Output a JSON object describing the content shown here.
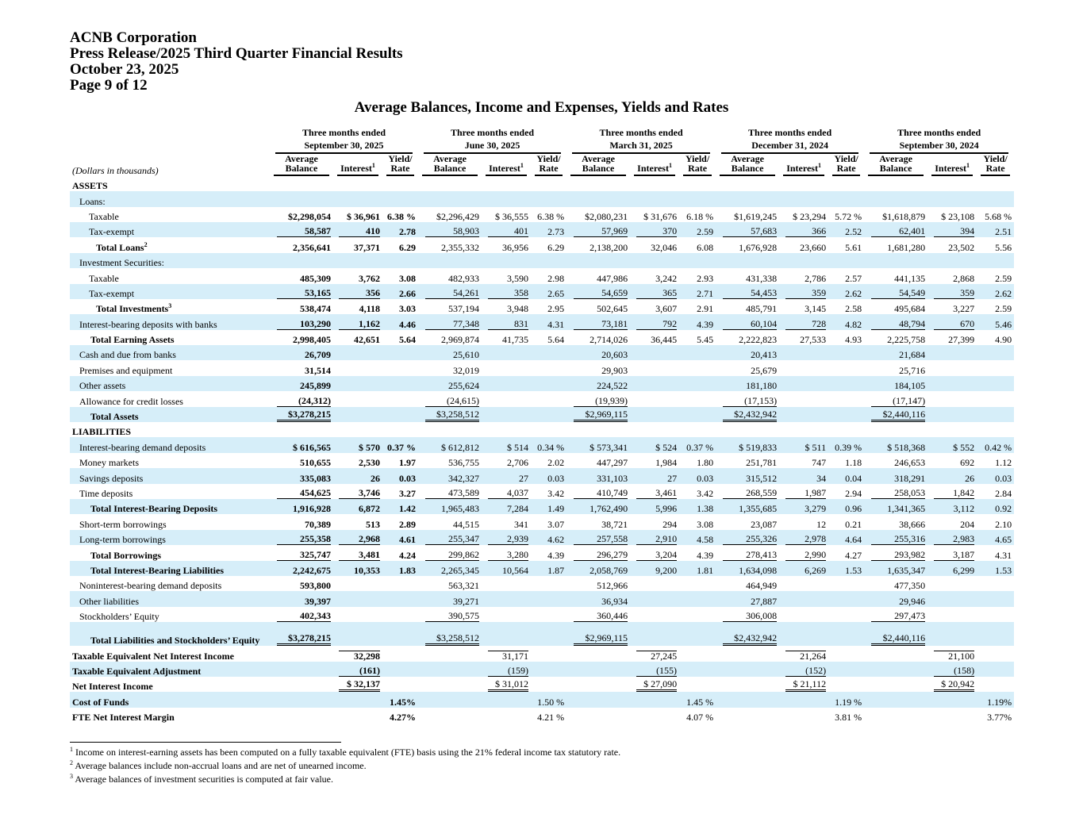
{
  "header": {
    "company": "ACNB Corporation",
    "release": "Press Release/2025 Third Quarter Financial Results",
    "date": "October 23, 2025",
    "page": "Page 9 of 12"
  },
  "title": "Average Balances, Income and Expenses, Yields and Rates",
  "units": "(Dollars in thousands)",
  "periods": [
    {
      "line1": "Three months ended",
      "line2": "September 30, 2025"
    },
    {
      "line1": "Three months ended",
      "line2": "June 30, 2025"
    },
    {
      "line1": "Three months ended",
      "line2": "March 31, 2025"
    },
    {
      "line1": "Three months ended",
      "line2": "December 31, 2024"
    },
    {
      "line1": "Three months ended",
      "line2": "September 30, 2024"
    }
  ],
  "columns": {
    "balance1": "Average",
    "balance2": "Balance",
    "interest": "Interest",
    "interest_sup": "1",
    "yield1": "Yield/",
    "yield2": "Rate"
  },
  "rows": [
    {
      "label": "ASSETS",
      "type": "section"
    },
    {
      "label": "Loans:",
      "indent": 1
    },
    {
      "label": "Taxable",
      "indent": 2,
      "v": [
        [
          "$2,298,054",
          "$ 36,961",
          "6.38 %"
        ],
        [
          "$2,296,429",
          "$ 36,555",
          "6.38 %"
        ],
        [
          "$2,080,231",
          "$ 31,676",
          "6.18 %"
        ],
        [
          "$1,619,245",
          "$ 23,294",
          "5.72 %"
        ],
        [
          "$1,618,879",
          "$ 23,108",
          "5.68 %"
        ]
      ]
    },
    {
      "label": "Tax-exempt",
      "indent": 2,
      "rule": "single",
      "v": [
        [
          "58,587",
          "410",
          "2.78"
        ],
        [
          "58,903",
          "401",
          "2.73"
        ],
        [
          "57,969",
          "370",
          "2.59"
        ],
        [
          "57,683",
          "366",
          "2.52"
        ],
        [
          "62,401",
          "394",
          "2.51"
        ]
      ]
    },
    {
      "label": "Total Loans",
      "sup": "2",
      "indent": 3,
      "bold": true,
      "v": [
        [
          "2,356,641",
          "37,371",
          "6.29"
        ],
        [
          "2,355,332",
          "36,956",
          "6.29"
        ],
        [
          "2,138,200",
          "32,046",
          "6.08"
        ],
        [
          "1,676,928",
          "23,660",
          "5.61"
        ],
        [
          "1,681,280",
          "23,502",
          "5.56"
        ]
      ]
    },
    {
      "label": "Investment Securities:",
      "indent": 1
    },
    {
      "label": "Taxable",
      "indent": 2,
      "v": [
        [
          "485,309",
          "3,762",
          "3.08"
        ],
        [
          "482,933",
          "3,590",
          "2.98"
        ],
        [
          "447,986",
          "3,242",
          "2.93"
        ],
        [
          "431,338",
          "2,786",
          "2.57"
        ],
        [
          "441,135",
          "2,868",
          "2.59"
        ]
      ]
    },
    {
      "label": "Tax-exempt",
      "indent": 2,
      "rule": "single",
      "v": [
        [
          "53,165",
          "356",
          "2.66"
        ],
        [
          "54,261",
          "358",
          "2.65"
        ],
        [
          "54,659",
          "365",
          "2.71"
        ],
        [
          "54,453",
          "359",
          "2.62"
        ],
        [
          "54,549",
          "359",
          "2.62"
        ]
      ]
    },
    {
      "label": "Total Investments",
      "sup": "3",
      "indent": 3,
      "bold": true,
      "v": [
        [
          "538,474",
          "4,118",
          "3.03"
        ],
        [
          "537,194",
          "3,948",
          "2.95"
        ],
        [
          "502,645",
          "3,607",
          "2.91"
        ],
        [
          "485,791",
          "3,145",
          "2.58"
        ],
        [
          "495,684",
          "3,227",
          "2.59"
        ]
      ]
    },
    {
      "label": "Interest-bearing deposits with banks",
      "indent": 1,
      "rule": "single",
      "v": [
        [
          "103,290",
          "1,162",
          "4.46"
        ],
        [
          "77,348",
          "831",
          "4.31"
        ],
        [
          "73,181",
          "792",
          "4.39"
        ],
        [
          "60,104",
          "728",
          "4.82"
        ],
        [
          "48,794",
          "670",
          "5.46"
        ]
      ]
    },
    {
      "label": "Total Earning Assets",
      "indent": "3b",
      "bold": true,
      "v": [
        [
          "2,998,405",
          "42,651",
          "5.64"
        ],
        [
          "2,969,874",
          "41,735",
          "5.64"
        ],
        [
          "2,714,026",
          "36,445",
          "5.45"
        ],
        [
          "2,222,823",
          "27,533",
          "4.93"
        ],
        [
          "2,225,758",
          "27,399",
          "4.90"
        ]
      ]
    },
    {
      "label": "Cash and due from banks",
      "indent": 1,
      "v": [
        [
          "26,709"
        ],
        [
          "25,610"
        ],
        [
          "20,603"
        ],
        [
          "20,413"
        ],
        [
          "21,684"
        ]
      ]
    },
    {
      "label": "Premises and equipment",
      "indent": 1,
      "v": [
        [
          "31,514"
        ],
        [
          "32,019"
        ],
        [
          "29,903"
        ],
        [
          "25,679"
        ],
        [
          "25,716"
        ]
      ]
    },
    {
      "label": "Other assets",
      "indent": 1,
      "v": [
        [
          "245,899"
        ],
        [
          "255,624"
        ],
        [
          "224,522"
        ],
        [
          "181,180"
        ],
        [
          "184,105"
        ]
      ]
    },
    {
      "label": "Allowance for credit losses",
      "indent": 1,
      "rule": "single",
      "v": [
        [
          "(24,312)"
        ],
        [
          "(24,615)"
        ],
        [
          "(19,939)"
        ],
        [
          "(17,153)"
        ],
        [
          "(17,147)"
        ]
      ]
    },
    {
      "label": "Total Assets",
      "indent": "3b",
      "bold": true,
      "rule": "double",
      "v": [
        [
          "$3,278,215"
        ],
        [
          "$3,258,512"
        ],
        [
          "$2,969,115"
        ],
        [
          "$2,432,942"
        ],
        [
          "$2,440,116"
        ]
      ]
    },
    {
      "label": "LIABILITIES",
      "type": "section"
    },
    {
      "label": "Interest-bearing demand deposits",
      "indent": 1,
      "v": [
        [
          "$ 616,565",
          "$ 570",
          "0.37 %"
        ],
        [
          "$ 612,812",
          "$ 514",
          "0.34 %"
        ],
        [
          "$ 573,341",
          "$ 524",
          "0.37 %"
        ],
        [
          "$ 519,833",
          "$ 511",
          "0.39 %"
        ],
        [
          "$ 518,368",
          "$ 552",
          "0.42 %"
        ]
      ]
    },
    {
      "label": "Money markets",
      "indent": 1,
      "v": [
        [
          "510,655",
          "2,530",
          "1.97"
        ],
        [
          "536,755",
          "2,706",
          "2.02"
        ],
        [
          "447,297",
          "1,984",
          "1.80"
        ],
        [
          "251,781",
          "747",
          "1.18"
        ],
        [
          "246,653",
          "692",
          "1.12"
        ]
      ]
    },
    {
      "label": "Savings deposits",
      "indent": 1,
      "v": [
        [
          "335,083",
          "26",
          "0.03"
        ],
        [
          "342,327",
          "27",
          "0.03"
        ],
        [
          "331,103",
          "27",
          "0.03"
        ],
        [
          "315,512",
          "34",
          "0.04"
        ],
        [
          "318,291",
          "26",
          "0.03"
        ]
      ]
    },
    {
      "label": "Time deposits",
      "indent": 1,
      "rule": "single",
      "v": [
        [
          "454,625",
          "3,746",
          "3.27"
        ],
        [
          "473,589",
          "4,037",
          "3.42"
        ],
        [
          "410,749",
          "3,461",
          "3.42"
        ],
        [
          "268,559",
          "1,987",
          "2.94"
        ],
        [
          "258,053",
          "1,842",
          "2.84"
        ]
      ]
    },
    {
      "label": "Total Interest-Bearing Deposits",
      "indent": "3b",
      "bold": true,
      "v": [
        [
          "1,916,928",
          "6,872",
          "1.42"
        ],
        [
          "1,965,483",
          "7,284",
          "1.49"
        ],
        [
          "1,762,490",
          "5,996",
          "1.38"
        ],
        [
          "1,355,685",
          "3,279",
          "0.96"
        ],
        [
          "1,341,365",
          "3,112",
          "0.92"
        ]
      ]
    },
    {
      "label": "Short-term borrowings",
      "indent": 1,
      "v": [
        [
          "70,389",
          "513",
          "2.89"
        ],
        [
          "44,515",
          "341",
          "3.07"
        ],
        [
          "38,721",
          "294",
          "3.08"
        ],
        [
          "23,087",
          "12",
          "0.21"
        ],
        [
          "38,666",
          "204",
          "2.10"
        ]
      ]
    },
    {
      "label": "Long-term borrowings",
      "indent": 1,
      "rule": "single",
      "v": [
        [
          "255,358",
          "2,968",
          "4.61"
        ],
        [
          "255,347",
          "2,939",
          "4.62"
        ],
        [
          "257,558",
          "2,910",
          "4.58"
        ],
        [
          "255,326",
          "2,978",
          "4.64"
        ],
        [
          "255,316",
          "2,983",
          "4.65"
        ]
      ]
    },
    {
      "label": "Total Borrowings",
      "indent": "3b",
      "bold": true,
      "rule": "single",
      "v": [
        [
          "325,747",
          "3,481",
          "4.24"
        ],
        [
          "299,862",
          "3,280",
          "4.39"
        ],
        [
          "296,279",
          "3,204",
          "4.39"
        ],
        [
          "278,413",
          "2,990",
          "4.27"
        ],
        [
          "293,982",
          "3,187",
          "4.31"
        ]
      ]
    },
    {
      "label": "Total Interest-Bearing Liabilities",
      "indent": "3b",
      "bold": true,
      "v": [
        [
          "2,242,675",
          "10,353",
          "1.83"
        ],
        [
          "2,265,345",
          "10,564",
          "1.87"
        ],
        [
          "2,058,769",
          "9,200",
          "1.81"
        ],
        [
          "1,634,098",
          "6,269",
          "1.53"
        ],
        [
          "1,635,347",
          "6,299",
          "1.53"
        ]
      ]
    },
    {
      "label": "Noninterest-bearing demand deposits",
      "indent": 1,
      "v": [
        [
          "593,800"
        ],
        [
          "563,321"
        ],
        [
          "512,966"
        ],
        [
          "464,949"
        ],
        [
          "477,350"
        ]
      ]
    },
    {
      "label": "Other liabilities",
      "indent": 1,
      "v": [
        [
          "39,397"
        ],
        [
          "39,271"
        ],
        [
          "36,934"
        ],
        [
          "27,887"
        ],
        [
          "29,946"
        ]
      ]
    },
    {
      "label": "Stockholders’ Equity",
      "indent": 1,
      "rule": "single",
      "v": [
        [
          "402,343"
        ],
        [
          "390,575"
        ],
        [
          "360,446"
        ],
        [
          "306,008"
        ],
        [
          "297,473"
        ]
      ]
    },
    {
      "label": "Total Liabilities and Stockholders’ Equity",
      "indent": "3b",
      "bold": true,
      "rule": "double",
      "tall": true,
      "v": [
        [
          "$3,278,215"
        ],
        [
          "$3,258,512"
        ],
        [
          "$2,969,115"
        ],
        [
          "$2,432,942"
        ],
        [
          "$2,440,116"
        ]
      ]
    },
    {
      "label": "Taxable Equivalent Net Interest Income",
      "indent": 0,
      "bold": true,
      "rule": "top",
      "v": [
        [
          "",
          "32,298"
        ],
        [
          "",
          "31,171"
        ],
        [
          "",
          "27,245"
        ],
        [
          "",
          "21,264"
        ],
        [
          "",
          "21,100"
        ]
      ]
    },
    {
      "label": "Taxable Equivalent Adjustment",
      "indent": 0,
      "bold": true,
      "rule": "single",
      "v": [
        [
          "",
          "(161)"
        ],
        [
          "",
          "(159)"
        ],
        [
          "",
          "(155)"
        ],
        [
          "",
          "(152)"
        ],
        [
          "",
          "(158)"
        ]
      ]
    },
    {
      "label": "Net Interest Income",
      "indent": 0,
      "bold": true,
      "rule": "double",
      "v": [
        [
          "",
          "$ 32,137"
        ],
        [
          "",
          "$ 31,012"
        ],
        [
          "",
          "$ 27,090"
        ],
        [
          "",
          "$ 21,112"
        ],
        [
          "",
          "$ 20,942"
        ]
      ]
    },
    {
      "label": "Cost of Funds",
      "indent": 0,
      "bold": true,
      "v": [
        [
          "",
          "",
          "1.45%"
        ],
        [
          "",
          "",
          "1.50 %"
        ],
        [
          "",
          "",
          "1.45 %"
        ],
        [
          "",
          "",
          "1.19 %"
        ],
        [
          "",
          "",
          "1.19%"
        ]
      ]
    },
    {
      "label": "FTE Net Interest Margin",
      "indent": 0,
      "bold": true,
      "v": [
        [
          "",
          "",
          "4.27%"
        ],
        [
          "",
          "",
          "4.21 %"
        ],
        [
          "",
          "",
          "4.07 %"
        ],
        [
          "",
          "",
          "3.81 %"
        ],
        [
          "",
          "",
          "3.77%"
        ]
      ]
    }
  ],
  "footnotes": [
    {
      "mark": "1",
      "text": "Income on interest-earning assets has been computed on a fully taxable equivalent (FTE) basis using the 21% federal income tax statutory rate."
    },
    {
      "mark": "2",
      "text": "Average balances include non-accrual loans and are net of unearned income."
    },
    {
      "mark": "3",
      "text": "Average balances of investment securities is computed at fair value."
    }
  ],
  "colors": {
    "stripe": "#d6eef9"
  }
}
